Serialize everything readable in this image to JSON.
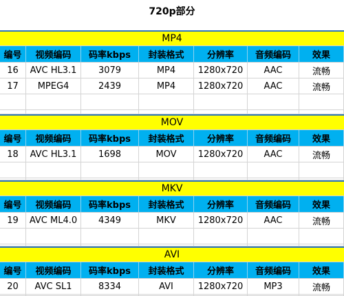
{
  "title": "720p部分",
  "sections": [
    {
      "name": "MP4",
      "header": [
        "编号",
        "视频编码",
        "码率kbps",
        "封装格式",
        "分辨率",
        "音频编码",
        "效果"
      ],
      "rows": [
        [
          "16",
          "AVC HL3.1",
          "3079",
          "MP4",
          "1280x720",
          "AAC",
          "流畅"
        ],
        [
          "17",
          "MPEG4",
          "2439",
          "MP4",
          "1280x720",
          "AAC",
          "流畅"
        ]
      ]
    },
    {
      "name": "MOV",
      "header": [
        "编号",
        "视频编码",
        "码率kbps",
        "封装格式",
        "分辨率",
        "音频编码",
        "效果"
      ],
      "rows": [
        [
          "18",
          "AVC HL3.1",
          "1698",
          "MOV",
          "1280x720",
          "AAC",
          "流畅"
        ]
      ]
    },
    {
      "name": "MKV",
      "header": [
        "编号",
        "视频编码",
        "码率kbps",
        "封装格式",
        "分辨率",
        "音频编码",
        "效果"
      ],
      "rows": [
        [
          "19",
          "AVC ML4.0",
          "4349",
          "MKV",
          "1280x720",
          "AAC",
          "流畅"
        ]
      ]
    },
    {
      "name": "AVI",
      "header": [
        "编号",
        "视频编码",
        "码率kbps",
        "封装格式",
        "分辨率",
        "音频编码",
        "效果"
      ],
      "rows": [
        [
          "20",
          "AVC SL1",
          "8334",
          "AVI",
          "1280x720",
          "MP3",
          "流畅"
        ]
      ]
    }
  ]
}
